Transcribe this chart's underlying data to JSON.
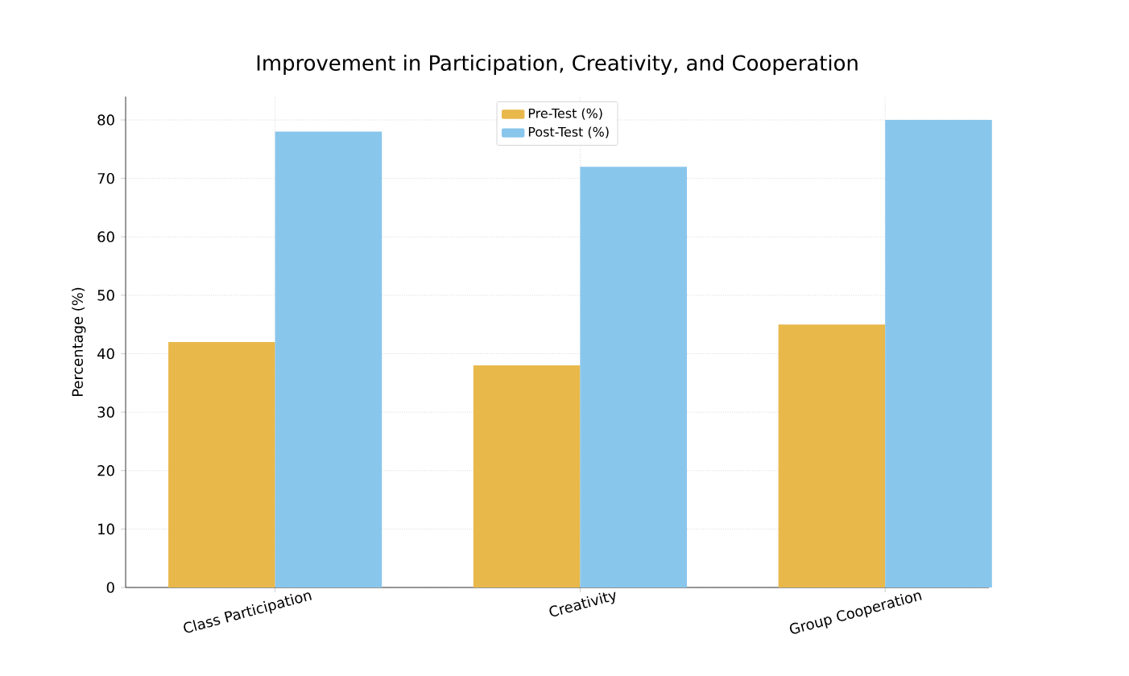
{
  "chart_data": {
    "type": "bar",
    "title": "Improvement in Participation, Creativity, and Cooperation",
    "ylabel": "Percentage (%)",
    "categories": [
      "Class Participation",
      "Creativity",
      "Group Cooperation"
    ],
    "series": [
      {
        "name": "Pre-Test (%)",
        "color": "#e8b84b",
        "values": [
          42,
          38,
          45
        ]
      },
      {
        "name": "Post-Test (%)",
        "color": "#89c6ec",
        "values": [
          78,
          72,
          80
        ]
      }
    ],
    "ylim": [
      0,
      84
    ],
    "yticks": [
      0,
      10,
      20,
      30,
      40,
      50,
      60,
      70,
      80
    ],
    "grid": true,
    "legend": "top"
  }
}
